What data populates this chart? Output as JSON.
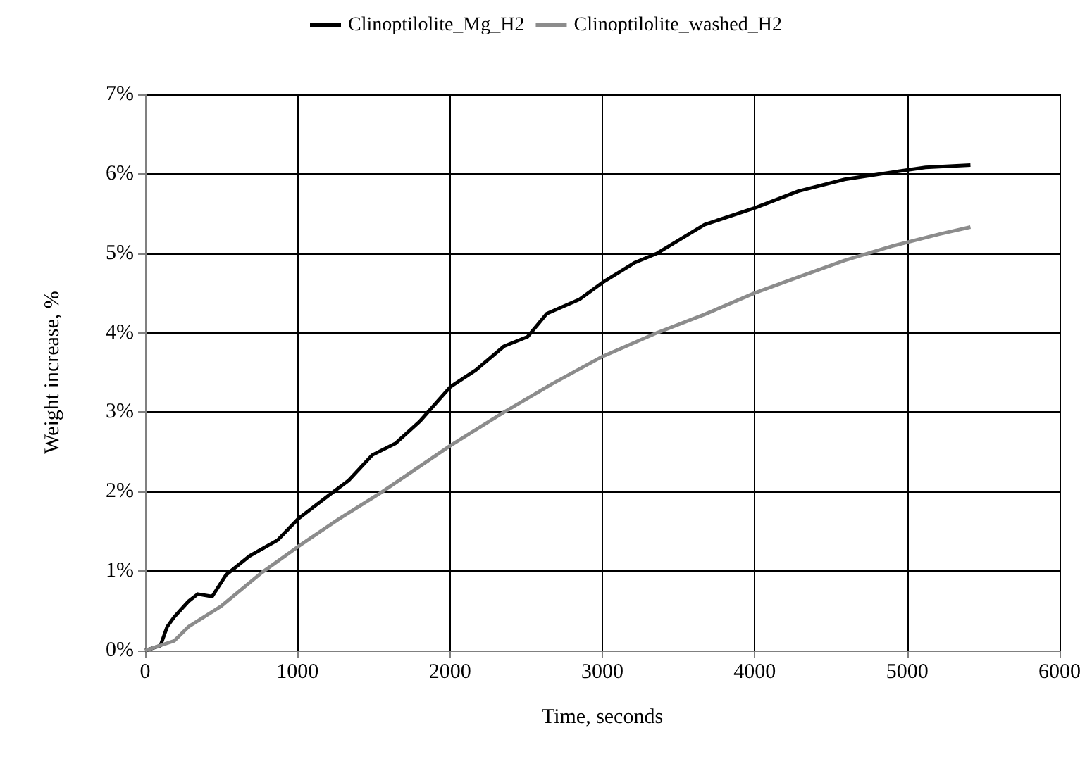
{
  "chart_data": {
    "type": "line",
    "xlabel": "Time, seconds",
    "ylabel": "Weight increase, %",
    "xlim": [
      0,
      6000
    ],
    "xticks": [
      0,
      1000,
      2000,
      3000,
      4000,
      5000,
      6000
    ],
    "ylim": [
      0,
      7
    ],
    "yticks": [
      {
        "value": 0,
        "label": "0%"
      },
      {
        "value": 1,
        "label": "1%"
      },
      {
        "value": 2,
        "label": "2%"
      },
      {
        "value": 3,
        "label": "3%"
      },
      {
        "value": 4,
        "label": "4%"
      },
      {
        "value": 5,
        "label": "5%"
      },
      {
        "value": 6,
        "label": "6%"
      },
      {
        "value": 7,
        "label": "7%"
      }
    ],
    "grid": true,
    "legend": "top",
    "marker": "none",
    "line_style": "solid",
    "series": [
      {
        "name": "Clinoptilolite_Mg_H2",
        "color": "#000000",
        "x": [
          0,
          100,
          145,
          190,
          285,
          345,
          440,
          530,
          685,
          870,
          1005,
          1210,
          1335,
          1490,
          1645,
          1800,
          2003,
          2170,
          2355,
          2510,
          2635,
          2850,
          3000,
          3210,
          3360,
          3670,
          4000,
          4285,
          4590,
          4900,
          5120,
          5415
        ],
        "values": [
          0,
          0.06,
          0.3,
          0.42,
          0.62,
          0.71,
          0.68,
          0.95,
          1.19,
          1.39,
          1.66,
          1.96,
          2.14,
          2.46,
          2.61,
          2.88,
          3.32,
          3.53,
          3.83,
          3.95,
          4.24,
          4.42,
          4.63,
          4.88,
          5.0,
          5.36,
          5.57,
          5.78,
          5.93,
          6.02,
          6.08,
          6.11
        ]
      },
      {
        "name": "Clinoptilolite_washed_H2",
        "color": "#8c8c8c",
        "x": [
          0,
          190,
          285,
          500,
          765,
          1005,
          1275,
          1550,
          2003,
          2355,
          2665,
          3000,
          3360,
          3670,
          4000,
          4285,
          4590,
          4900,
          5210,
          5415
        ],
        "values": [
          0,
          0.12,
          0.3,
          0.56,
          0.98,
          1.31,
          1.66,
          1.99,
          2.58,
          3.0,
          3.35,
          3.7,
          4.0,
          4.23,
          4.5,
          4.7,
          4.91,
          5.09,
          5.24,
          5.33
        ]
      }
    ]
  }
}
